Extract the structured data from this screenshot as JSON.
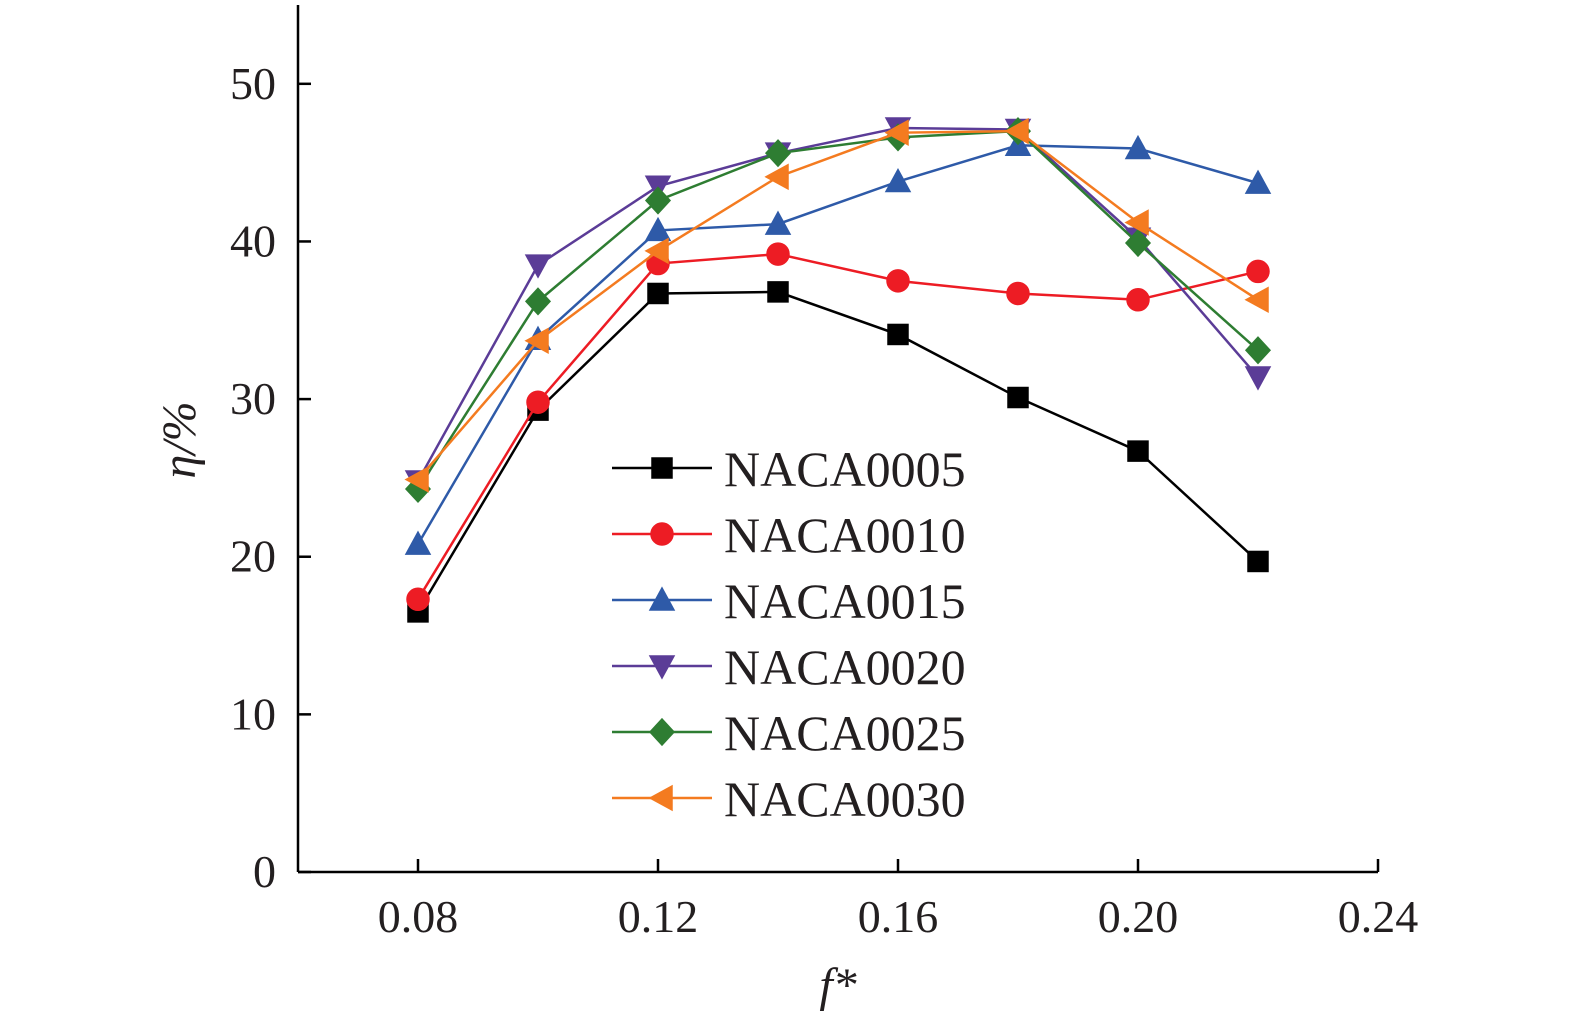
{
  "chart_data": {
    "type": "line",
    "title": "",
    "xlabel": "f*",
    "ylabel": "η/%",
    "x_tick_labels": [
      "0.08",
      "0.12",
      "0.16",
      "0.20",
      "0.24"
    ],
    "x_ticks": [
      0.08,
      0.12,
      0.16,
      0.2,
      0.24
    ],
    "y_tick_labels": [
      "0",
      "10",
      "20",
      "30",
      "40",
      "50"
    ],
    "y_ticks": [
      0,
      10,
      20,
      30,
      40,
      50
    ],
    "xlim": [
      0.06,
      0.24
    ],
    "ylim": [
      0,
      55
    ],
    "grid": false,
    "legend_position": "center",
    "x": [
      0.08,
      0.1,
      0.12,
      0.14,
      0.16,
      0.18,
      0.2,
      0.22
    ],
    "series": [
      {
        "name": "NACA0005",
        "color": "#000000",
        "marker": "square",
        "values": [
          16.5,
          29.3,
          36.7,
          36.8,
          34.1,
          30.1,
          26.7,
          19.7
        ]
      },
      {
        "name": "NACA0010",
        "color": "#ed1c24",
        "marker": "circle",
        "values": [
          17.3,
          29.8,
          38.6,
          39.2,
          37.5,
          36.7,
          36.3,
          38.1
        ]
      },
      {
        "name": "NACA0015",
        "color": "#2e5aa8",
        "marker": "triangle-up",
        "values": [
          20.8,
          33.8,
          40.7,
          41.1,
          43.8,
          46.1,
          45.9,
          43.7
        ]
      },
      {
        "name": "NACA0020",
        "color": "#5b3c97",
        "marker": "triangle-down",
        "values": [
          24.8,
          38.5,
          43.5,
          45.6,
          47.2,
          47.1,
          40.2,
          31.4
        ]
      },
      {
        "name": "NACA0025",
        "color": "#2e7d32",
        "marker": "diamond",
        "values": [
          24.3,
          36.2,
          42.6,
          45.6,
          46.6,
          47.0,
          39.9,
          33.1
        ]
      },
      {
        "name": "NACA0030",
        "color": "#f47b20",
        "marker": "triangle-left",
        "values": [
          24.9,
          33.7,
          39.4,
          44.1,
          46.9,
          47.0,
          41.2,
          36.3
        ]
      }
    ]
  }
}
